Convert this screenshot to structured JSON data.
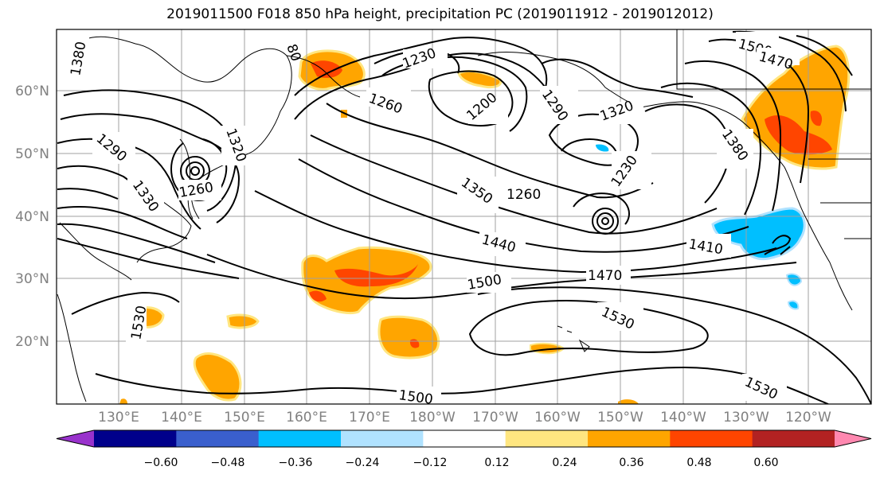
{
  "title": "2019011500 F018 850 hPa height, precipitation PC (2019011912 - 2019012012)",
  "lat_labels": [
    "60°N",
    "50°N",
    "40°N",
    "30°N",
    "20°N"
  ],
  "lon_labels": [
    "130°E",
    "140°E",
    "150°E",
    "160°E",
    "170°E",
    "180°W",
    "170°W",
    "160°W",
    "150°W",
    "140°W",
    "130°W",
    "120°W"
  ],
  "colorbar": {
    "tick_labels": [
      "−0.60",
      "−0.48",
      "−0.36",
      "−0.24",
      "−0.12",
      "0.12",
      "0.24",
      "0.36",
      "0.48",
      "0.60"
    ],
    "colors": [
      "#9932cc",
      "#00008b",
      "#3a5fcd",
      "#00bfff",
      "#b0e2ff",
      "#ffffff",
      "#ffe680",
      "#ffa500",
      "#ff4500",
      "#b22222",
      "#ff88b0"
    ]
  },
  "contour_labels": [
    {
      "id": "c1380a",
      "text": "1380"
    },
    {
      "id": "c80",
      "text": "80"
    },
    {
      "id": "c1230a",
      "text": "1230"
    },
    {
      "id": "c1500a",
      "text": "1500"
    },
    {
      "id": "c1470a",
      "text": "1470"
    },
    {
      "id": "c1260a",
      "text": "1260"
    },
    {
      "id": "c1200",
      "text": "1200"
    },
    {
      "id": "c1290a",
      "text": "1290"
    },
    {
      "id": "c1320a",
      "text": "1320"
    },
    {
      "id": "c1290b",
      "text": "1290"
    },
    {
      "id": "c1320b",
      "text": "1320"
    },
    {
      "id": "c1380b",
      "text": "1380"
    },
    {
      "id": "c1330",
      "text": "1330"
    },
    {
      "id": "c1260b",
      "text": "1260"
    },
    {
      "id": "c1350",
      "text": "1350"
    },
    {
      "id": "c1260c",
      "text": "1260"
    },
    {
      "id": "c1230b",
      "text": "1230"
    },
    {
      "id": "c1440",
      "text": "1440"
    },
    {
      "id": "c1410",
      "text": "1410"
    },
    {
      "id": "c1470b",
      "text": "1470"
    },
    {
      "id": "c1500b",
      "text": "1500"
    },
    {
      "id": "c1530a",
      "text": "1530"
    },
    {
      "id": "c1530b",
      "text": "1530"
    },
    {
      "id": "c1500c",
      "text": "1500"
    },
    {
      "id": "c1530c",
      "text": "1530"
    }
  ]
}
